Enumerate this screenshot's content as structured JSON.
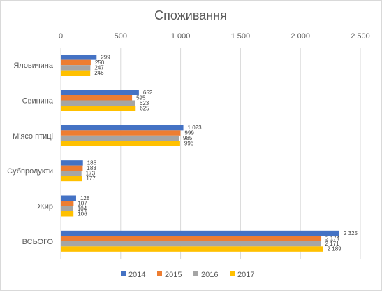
{
  "chart_data": {
    "type": "bar",
    "orientation": "horizontal",
    "title": "Споживання",
    "categories": [
      "Яловичина",
      "Свинина",
      "М'ясо птиці",
      "Субпродукти",
      "Жир",
      "ВСЬОГО"
    ],
    "series": [
      {
        "name": "2014",
        "color": "#4472c4",
        "values": [
          299,
          652,
          1023,
          185,
          128,
          2325
        ],
        "labels": [
          "299",
          "652",
          "1 023",
          "185",
          "128",
          "2 325"
        ]
      },
      {
        "name": "2015",
        "color": "#ed7d31",
        "values": [
          250,
          595,
          999,
          183,
          107,
          2174
        ],
        "labels": [
          "250",
          "595",
          "999",
          "183",
          "107",
          "2 174"
        ]
      },
      {
        "name": "2016",
        "color": "#a5a5a5",
        "values": [
          247,
          623,
          985,
          173,
          104,
          2171
        ],
        "labels": [
          "247",
          "623",
          "985",
          "173",
          "104",
          "2 171"
        ]
      },
      {
        "name": "2017",
        "color": "#ffc000",
        "values": [
          246,
          625,
          996,
          177,
          106,
          2189
        ],
        "labels": [
          "246",
          "625",
          "996",
          "177",
          "106",
          "2 189"
        ]
      }
    ],
    "xlim": [
      0,
      2500
    ],
    "xticks": [
      0,
      500,
      1000,
      1500,
      2000,
      2500
    ],
    "xtick_labels": [
      "0",
      "500",
      "1 000",
      "1 500",
      "2 000",
      "2 500"
    ],
    "x_axis_position": "top",
    "grid": true,
    "legend_position": "bottom"
  }
}
